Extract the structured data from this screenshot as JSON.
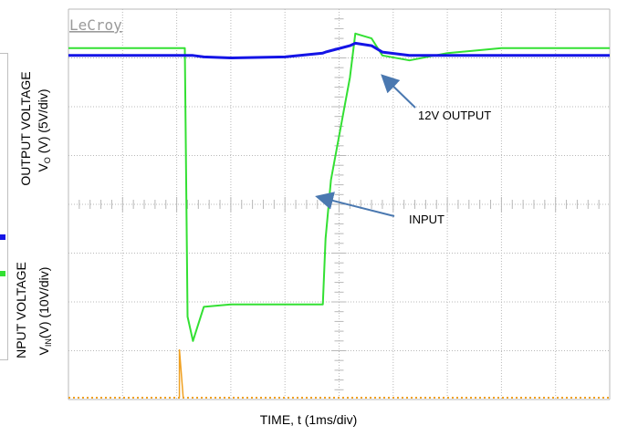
{
  "brand": "LeCroy",
  "y_label_top": {
    "main": "OUTPUT VOLTAGE",
    "sym": "V",
    "sub": "O",
    "rest": " (V) (5V/div)"
  },
  "y_label_bottom": {
    "main": "NPUT VOLTAGE",
    "sym": "V",
    "sub": "IN",
    "rest": "(V) (10V/div)"
  },
  "x_label": "TIME, t (1ms/div)",
  "annotations": {
    "output": "12V OUTPUT",
    "input": "INPUT"
  },
  "colors": {
    "input_trace": "#33e033",
    "output_trace": "#1414e6",
    "aux_trace": "#f0a020",
    "grid": "#b8b8b8",
    "arrow": "#4a78b0",
    "background": "#ffffff"
  },
  "chart_data": {
    "type": "line",
    "xlabel": "TIME, t (1ms/div)",
    "x_divisions": 10,
    "y_divisions": 8,
    "grid": true,
    "x": [
      0,
      2.15,
      2.2,
      2.3,
      2.5,
      3,
      4,
      4.7,
      4.75,
      4.85,
      5.2,
      5.3,
      5.6,
      5.8,
      6.3,
      7,
      8,
      10
    ],
    "series": [
      {
        "name": "INPUT",
        "values": [
          7.2,
          7.2,
          1.7,
          1.2,
          1.9,
          1.95,
          1.95,
          1.95,
          3.3,
          4.5,
          6.6,
          7.5,
          7.4,
          7.05,
          6.95,
          7.1,
          7.2,
          7.2
        ]
      },
      {
        "name": "12V OUTPUT",
        "values": [
          7.05,
          7.05,
          7.05,
          7.05,
          7.02,
          7.0,
          7.02,
          7.1,
          7.12,
          7.15,
          7.25,
          7.3,
          7.25,
          7.12,
          7.05,
          7.05,
          7.05,
          7.05
        ]
      }
    ]
  }
}
